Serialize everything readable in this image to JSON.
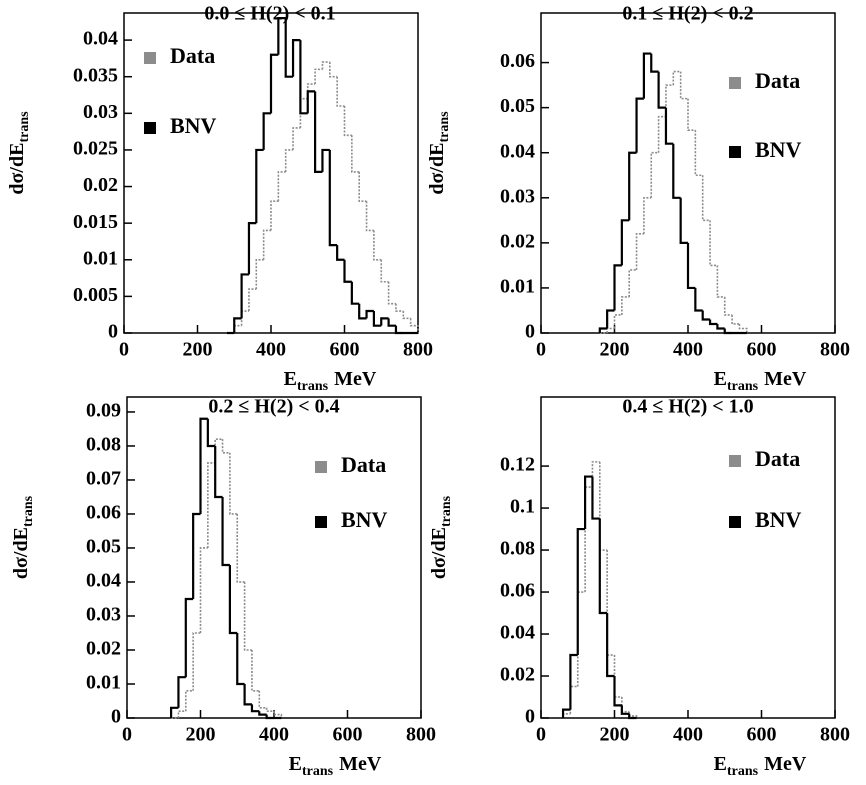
{
  "chart_data": [
    {
      "type": "histogram",
      "title": "0.0 ≤ H(2) < 0.1",
      "xlabel": {
        "main": "E",
        "sub": "trans",
        "unit": "MeV"
      },
      "ylabel": {
        "main": "dσ/dE",
        "sub": "trans"
      },
      "bins": [
        280,
        300,
        320,
        340,
        360,
        380,
        400,
        420,
        440,
        460,
        480,
        500,
        520,
        540,
        560,
        580,
        600,
        620,
        640,
        660,
        680,
        700,
        720,
        740,
        760,
        780,
        800
      ],
      "series": [
        {
          "name": "Data",
          "color": "#8c8c8c",
          "values": [
            0,
            0.001,
            0.003,
            0.006,
            0.01,
            0.014,
            0.018,
            0.022,
            0.025,
            0.028,
            0.032,
            0.034,
            0.036,
            0.037,
            0.035,
            0.031,
            0.027,
            0.022,
            0.018,
            0.014,
            0.01,
            0.007,
            0.004,
            0.003,
            0.002,
            0.001
          ]
        },
        {
          "name": "BNV",
          "color": "#000000",
          "values": [
            0,
            0.002,
            0.008,
            0.015,
            0.025,
            0.03,
            0.038,
            0.043,
            0.035,
            0.04,
            0.03,
            0.033,
            0.022,
            0.025,
            0.012,
            0.01,
            0.007,
            0.004,
            0.002,
            0.003,
            0.001,
            0.002,
            0.001,
            0,
            0,
            0
          ]
        }
      ],
      "xlim": [
        0,
        800
      ],
      "xticks": [
        0,
        200,
        400,
        600,
        800
      ],
      "ylim": [
        0,
        0.0437
      ],
      "yticks": [
        0,
        0.005,
        0.01,
        0.015,
        0.02,
        0.025,
        0.03,
        0.035,
        0.04
      ],
      "legend": "upper left"
    },
    {
      "type": "histogram",
      "title": "0.1 ≤ H(2) < 0.2",
      "xlabel": {
        "main": "E",
        "sub": "trans",
        "unit": "MeV"
      },
      "ylabel": {
        "main": "dσ/dE",
        "sub": "trans"
      },
      "bins": [
        160,
        180,
        200,
        220,
        240,
        260,
        280,
        300,
        320,
        340,
        360,
        380,
        400,
        420,
        440,
        460,
        480,
        500,
        520,
        540,
        560
      ],
      "series": [
        {
          "name": "Data",
          "color": "#8c8c8c",
          "values": [
            0,
            0.001,
            0.004,
            0.008,
            0.014,
            0.022,
            0.03,
            0.04,
            0.048,
            0.055,
            0.058,
            0.052,
            0.045,
            0.035,
            0.025,
            0.015,
            0.008,
            0.004,
            0.002,
            0.001
          ]
        },
        {
          "name": "BNV",
          "color": "#000000",
          "values": [
            0.001,
            0.005,
            0.015,
            0.025,
            0.04,
            0.052,
            0.062,
            0.058,
            0.05,
            0.042,
            0.03,
            0.02,
            0.01,
            0.005,
            0.003,
            0.002,
            0.001,
            0,
            0,
            0
          ]
        }
      ],
      "xlim": [
        0,
        800
      ],
      "xticks": [
        0,
        200,
        400,
        600,
        800
      ],
      "ylim": [
        0,
        0.071
      ],
      "yticks": [
        0,
        0.01,
        0.02,
        0.03,
        0.04,
        0.05,
        0.06
      ],
      "legend": "upper right"
    },
    {
      "type": "histogram",
      "title": "0.2 ≤ H(2) < 0.4",
      "xlabel": {
        "main": "E",
        "sub": "trans",
        "unit": "MeV"
      },
      "ylabel": {
        "main": "dσ/dE",
        "sub": "trans"
      },
      "bins": [
        120,
        140,
        160,
        180,
        200,
        220,
        240,
        260,
        280,
        300,
        320,
        340,
        360,
        380,
        400,
        420
      ],
      "series": [
        {
          "name": "Data",
          "color": "#8c8c8c",
          "values": [
            0,
            0.002,
            0.008,
            0.025,
            0.05,
            0.075,
            0.082,
            0.078,
            0.06,
            0.04,
            0.02,
            0.008,
            0.003,
            0.002,
            0.001
          ]
        },
        {
          "name": "BNV",
          "color": "#000000",
          "values": [
            0.003,
            0.012,
            0.035,
            0.06,
            0.088,
            0.08,
            0.065,
            0.045,
            0.025,
            0.01,
            0.004,
            0.002,
            0.001,
            0,
            0
          ]
        }
      ],
      "xlim": [
        0,
        800
      ],
      "xticks": [
        0,
        200,
        400,
        600,
        800
      ],
      "ylim": [
        0,
        0.0944
      ],
      "yticks": [
        0,
        0.01,
        0.02,
        0.03,
        0.04,
        0.05,
        0.06,
        0.07,
        0.08,
        0.09
      ],
      "legend": "upper right"
    },
    {
      "type": "histogram",
      "title": "0.4 ≤ H(2) < 1.0",
      "xlabel": {
        "main": "E",
        "sub": "trans",
        "unit": "MeV"
      },
      "ylabel": {
        "main": "dσ/dE",
        "sub": "trans"
      },
      "bins": [
        60,
        80,
        100,
        120,
        140,
        160,
        180,
        200,
        220,
        240,
        260
      ],
      "series": [
        {
          "name": "Data",
          "color": "#8c8c8c",
          "values": [
            0.002,
            0.015,
            0.06,
            0.11,
            0.122,
            0.08,
            0.03,
            0.01,
            0.003,
            0.001
          ]
        },
        {
          "name": "BNV",
          "color": "#000000",
          "values": [
            0.004,
            0.03,
            0.09,
            0.115,
            0.095,
            0.05,
            0.02,
            0.006,
            0.002,
            0
          ]
        }
      ],
      "xlim": [
        0,
        800
      ],
      "xticks": [
        0,
        200,
        400,
        600,
        800
      ],
      "ylim": [
        0,
        0.1529
      ],
      "yticks": [
        0,
        0.02,
        0.04,
        0.06,
        0.08,
        0.1,
        0.12
      ],
      "legend": "upper right"
    }
  ]
}
